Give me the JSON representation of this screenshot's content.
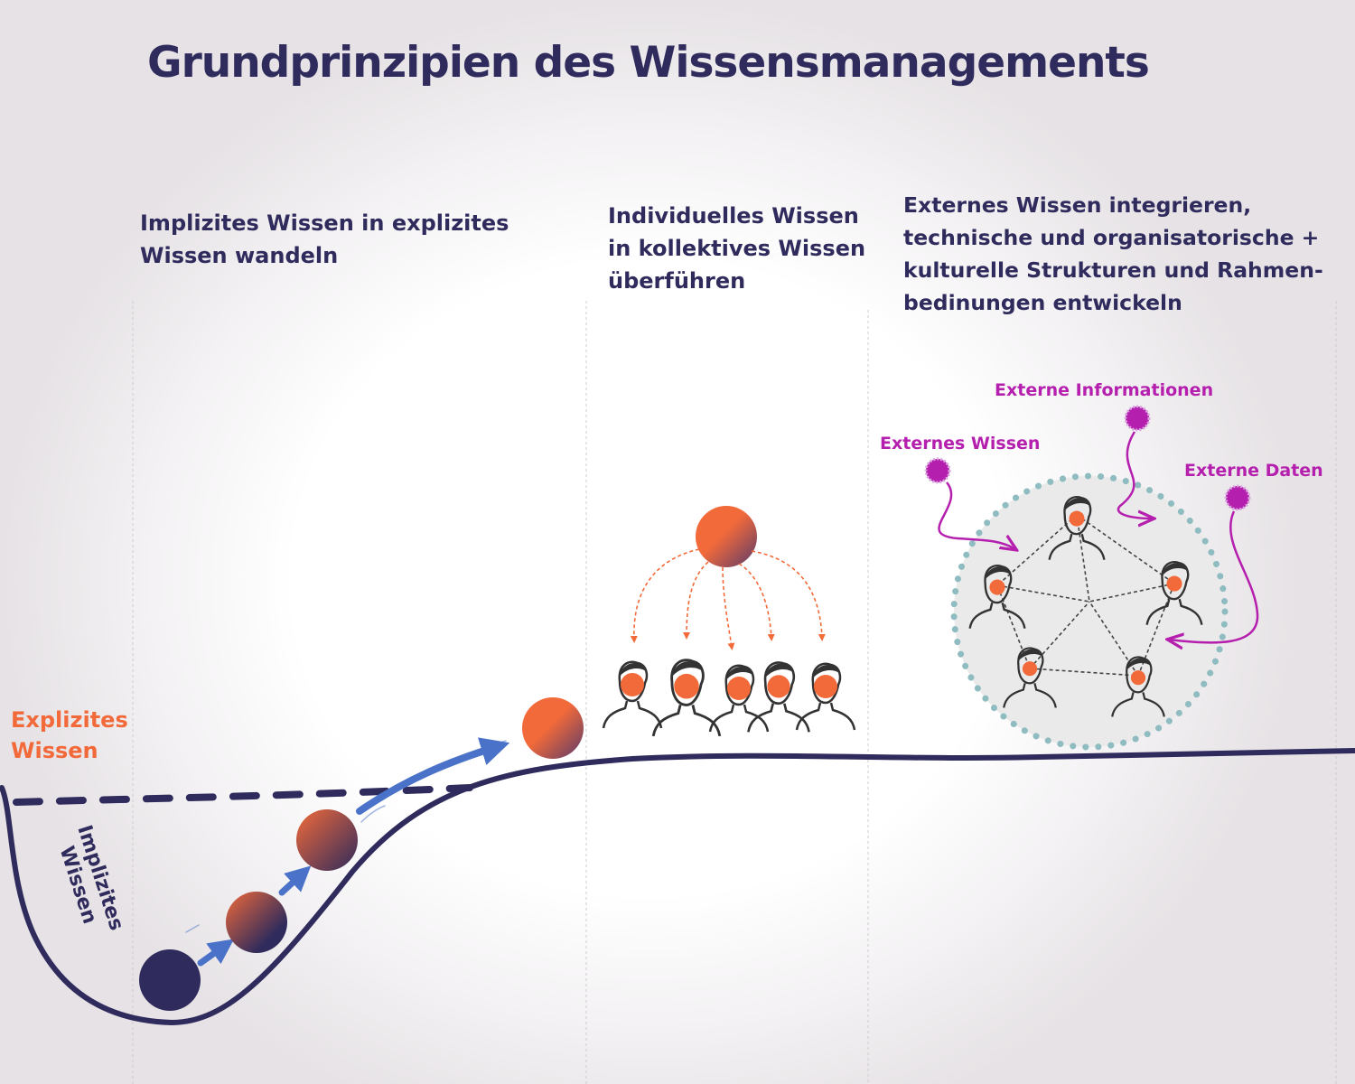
{
  "title": "Grundprinzipien des Wissensmanagements",
  "sections": [
    {
      "heading": "Implizites Wissen in explizites\nWissen wandeln"
    },
    {
      "heading": "Individuelles Wissen\nin kollektives Wissen\nüberführen"
    },
    {
      "heading": "Externes Wissen integrieren,\ntechnische und organisatorische +\nkulturelle Strukturen und Rahmen-\nbedinungen entwickeln"
    }
  ],
  "curve_labels": {
    "explicit": "Explizites\nWissen",
    "implicit": "Implizites\nWissen"
  },
  "external_sources": {
    "info": "Externe Informationen",
    "wissen": "Externes Wissen",
    "daten": "Externe Daten"
  },
  "colors": {
    "navy": "#2f2b5c",
    "orange": "#f26a3a",
    "magenta": "#b51fae",
    "arrow_blue": "#4a72c8",
    "teal_dots": "#8fbcc0"
  }
}
